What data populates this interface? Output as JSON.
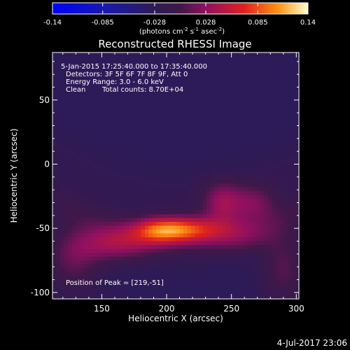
{
  "colorbar": {
    "ticks": [
      "-0.14",
      "-0.085",
      "-0.028",
      "0.028",
      "0.085",
      "0.14"
    ],
    "unit_parts": [
      "(photons cm",
      "-2",
      " s",
      "-1",
      " asec",
      "-2",
      ")"
    ]
  },
  "chart_data": {
    "type": "heatmap",
    "title": "Reconstructed RHESSI Image",
    "xlabel": "Heliocentric X (arcsec)",
    "ylabel": "Heliocentric Y (arcsec)",
    "xlim": [
      112,
      302
    ],
    "ylim": [
      -105,
      87
    ],
    "xticks": [
      150,
      200,
      250,
      300
    ],
    "yticks": [
      -100,
      -50,
      0,
      50
    ],
    "color_range": [
      -0.14,
      0.14
    ],
    "peak": [
      219,
      -51
    ],
    "sources": [
      {
        "x": 212,
        "y": -51,
        "sx": 20,
        "sy": 7,
        "amp": 0.095
      },
      {
        "x": 193,
        "y": -52,
        "sx": 14,
        "sy": 7,
        "amp": 0.05
      },
      {
        "x": 243,
        "y": -30,
        "sx": 11,
        "sy": 12,
        "amp": 0.052
      },
      {
        "x": 268,
        "y": -30,
        "sx": 12,
        "sy": 10,
        "amp": 0.04
      },
      {
        "x": 160,
        "y": -62,
        "sx": 22,
        "sy": 10,
        "amp": 0.055
      },
      {
        "x": 128,
        "y": -75,
        "sx": 15,
        "sy": 18,
        "amp": 0.038
      },
      {
        "x": 290,
        "y": -82,
        "sx": 12,
        "sy": 20,
        "amp": 0.036
      },
      {
        "x": 255,
        "y": -55,
        "sx": 20,
        "sy": 10,
        "amp": 0.03
      }
    ]
  },
  "annotations": {
    "time_range": "5-Jan-2015 17:25:40.000 to 17:35:40.000",
    "detectors": "Detectors: 3F 5F 6F 7F 8F 9F, Att 0",
    "energy": "Energy Range: 3.0 - 6.0 keV",
    "method": "Clean",
    "counts": "Total counts: 8.70E+04",
    "peak_label": "Position of Peak = [219,-51]"
  },
  "footer": {
    "date": "4-Jul-2017 23:06"
  }
}
